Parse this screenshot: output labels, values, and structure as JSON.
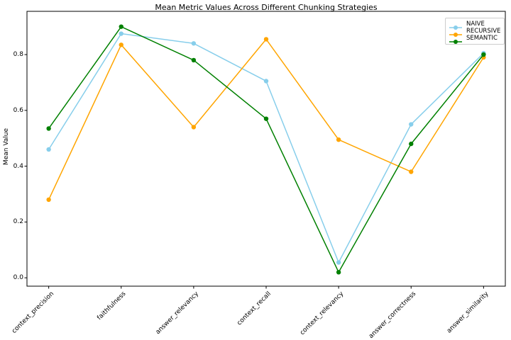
{
  "chart_data": {
    "type": "line",
    "title": "Mean Metric Values Across Different Chunking Strategies",
    "xlabel": "",
    "ylabel": "Mean Value",
    "categories": [
      "context_precision",
      "faithfulness",
      "answer_relevancy",
      "context_recall",
      "context_relevancy",
      "answer_correctness",
      "answer_similarity"
    ],
    "series": [
      {
        "name": "NAIVE",
        "color": "#87CEEB",
        "values": [
          0.46,
          0.875,
          0.84,
          0.705,
          0.055,
          0.55,
          0.805
        ]
      },
      {
        "name": "RECURSIVE",
        "color": "#FFA500",
        "values": [
          0.28,
          0.835,
          0.54,
          0.855,
          0.495,
          0.38,
          0.79
        ]
      },
      {
        "name": "SEMANTIC",
        "color": "#008000",
        "values": [
          0.535,
          0.9,
          0.78,
          0.57,
          0.02,
          0.48,
          0.8
        ]
      }
    ],
    "yticks": [
      0.0,
      0.2,
      0.4,
      0.6,
      0.8
    ],
    "ylim": [
      -0.03,
      0.955
    ],
    "grid": false,
    "legend_position": "upper right",
    "marker": "circle",
    "axis_color": "#000000"
  }
}
